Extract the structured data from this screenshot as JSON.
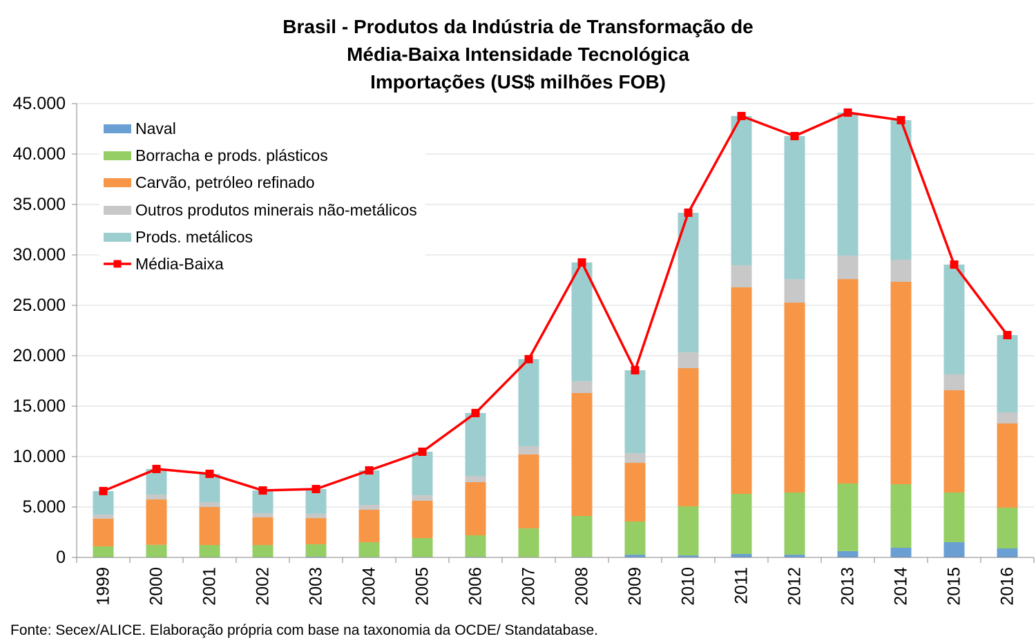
{
  "chart_data": {
    "type": "bar",
    "stacked": true,
    "title_lines": [
      "Brasil - Produtos da Indústria de Transformação de",
      "Média-Baixa Intensidade Tecnológica",
      "Importações (US$ milhões FOB)"
    ],
    "categories": [
      "1999",
      "2000",
      "2001",
      "2002",
      "2003",
      "2004",
      "2005",
      "2006",
      "2007",
      "2008",
      "2009",
      "2010",
      "2011",
      "2012",
      "2013",
      "2014",
      "2015",
      "2016"
    ],
    "series": [
      {
        "name": "Naval",
        "type": "bar",
        "color": "#6A9FD4",
        "values": [
          20,
          30,
          30,
          20,
          80,
          40,
          40,
          60,
          40,
          50,
          270,
          200,
          340,
          270,
          620,
          960,
          1510,
          890
        ]
      },
      {
        "name": "Borracha e prods. plásticos",
        "type": "bar",
        "color": "#95CE64",
        "values": [
          1080,
          1220,
          1200,
          1210,
          1220,
          1470,
          1880,
          2130,
          2840,
          4060,
          3290,
          4870,
          5960,
          6170,
          6710,
          6300,
          4930,
          4040
        ]
      },
      {
        "name": "Carvão, petróleo refinado",
        "type": "bar",
        "color": "#F79646",
        "values": [
          2740,
          4500,
          3770,
          2740,
          2600,
          3220,
          3700,
          5280,
          7330,
          12190,
          5820,
          13700,
          20480,
          18830,
          20270,
          20070,
          10140,
          8360
        ]
      },
      {
        "name": "Outros produtos minerais não-metálicos",
        "type": "bar",
        "color": "#C8C8C8",
        "values": [
          410,
          480,
          480,
          410,
          420,
          480,
          540,
          610,
          820,
          1170,
          960,
          1570,
          2190,
          2330,
          2330,
          2190,
          1570,
          1090
        ]
      },
      {
        "name": "Prods. metálicos",
        "type": "bar",
        "color": "#9DCECF",
        "values": [
          2330,
          2540,
          2810,
          2260,
          2460,
          3420,
          4320,
          6240,
          8630,
          11780,
          8220,
          13840,
          14800,
          14180,
          14180,
          13840,
          10890,
          7670
        ]
      },
      {
        "name": "Média-Baixa",
        "type": "line",
        "marker": "square",
        "color": "#FF0000",
        "values": [
          6580,
          8770,
          8290,
          6640,
          6780,
          8630,
          10480,
          14320,
          19660,
          29250,
          18560,
          34180,
          43770,
          41780,
          44110,
          43360,
          29040,
          22050
        ]
      }
    ],
    "ylim": [
      0,
      45000
    ],
    "yticks": [
      0,
      5000,
      10000,
      15000,
      20000,
      25000,
      30000,
      35000,
      40000,
      45000
    ],
    "ytick_labels": [
      "0",
      "5.000",
      "10.000",
      "15.000",
      "20.000",
      "25.000",
      "30.000",
      "35.000",
      "40.000",
      "45.000"
    ],
    "grid": "horizontal",
    "legend": "top-left",
    "source": "Fonte: Secex/ALICE. Elaboração própria com base na taxonomia da OCDE/ Standatabase."
  }
}
